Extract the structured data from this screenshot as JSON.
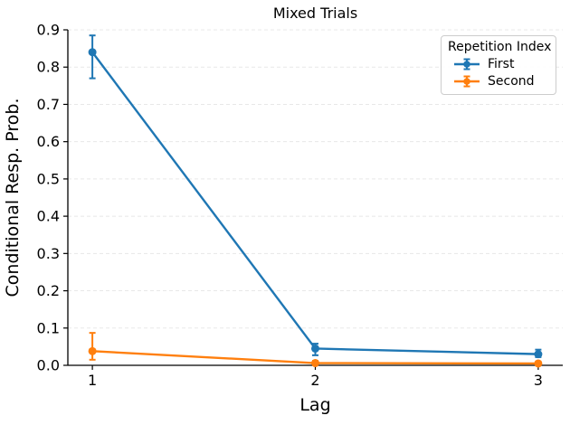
{
  "figure": {
    "title": "Mixed Trials",
    "xlabel": "Lag",
    "ylabel": "Conditional Resp. Prob."
  },
  "legend": {
    "title": "Repetition Index",
    "entries": [
      {
        "label": "First",
        "color": "#1f77b4"
      },
      {
        "label": "Second",
        "color": "#ff7f0e"
      }
    ]
  },
  "chart_data": {
    "type": "line",
    "title": "Mixed Trials",
    "xlabel": "Lag",
    "ylabel": "Conditional Resp. Prob.",
    "x": [
      1,
      2,
      3
    ],
    "xtick_labels": [
      "1",
      "2",
      "3"
    ],
    "ytick_values": [
      0.0,
      0.1,
      0.2,
      0.3,
      0.4,
      0.5,
      0.6,
      0.7,
      0.8,
      0.9
    ],
    "ytick_labels": [
      "0.0",
      "0.1",
      "0.2",
      "0.3",
      "0.4",
      "0.5",
      "0.6",
      "0.7",
      "0.8",
      "0.9"
    ],
    "xlim": [
      0.89,
      3.11
    ],
    "ylim": [
      0.0,
      0.9
    ],
    "grid": "horizontal-dashed",
    "legend_position": "upper right",
    "marker": "circle",
    "error_bars": true,
    "series": [
      {
        "name": "First",
        "color": "#1f77b4",
        "values": [
          0.84,
          0.045,
          0.03
        ],
        "err_low": [
          0.77,
          0.027,
          0.022
        ],
        "err_high": [
          0.885,
          0.058,
          0.042
        ]
      },
      {
        "name": "Second",
        "color": "#ff7f0e",
        "values": [
          0.038,
          0.006,
          0.005
        ],
        "err_low": [
          0.015,
          0.002,
          0.001
        ],
        "err_high": [
          0.087,
          0.012,
          0.009
        ]
      }
    ]
  },
  "colors": {
    "grid": "#e8e8e8",
    "spine": "#000000",
    "legend_border": "#cccccc",
    "background": "#ffffff"
  }
}
